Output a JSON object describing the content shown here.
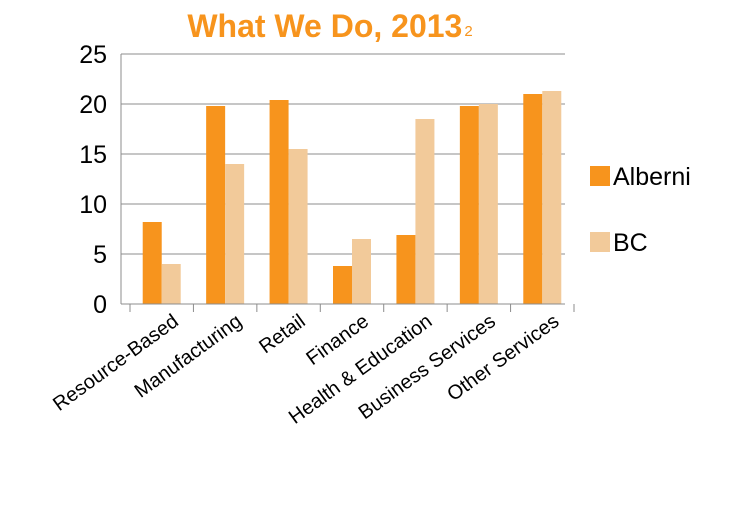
{
  "chart_data": {
    "type": "bar",
    "title": "What We Do, 2013",
    "title_superscript": "2",
    "xlabel": "",
    "ylabel": "",
    "categories": [
      "Resource-Based",
      "Manufacturing",
      "Retail",
      "Finance",
      "Health & Education",
      "Business Services",
      "Other Services"
    ],
    "series": [
      {
        "name": "Alberni",
        "color": "#f7941d",
        "values": [
          8.2,
          19.8,
          20.4,
          3.8,
          6.9,
          19.8,
          21.0
        ]
      },
      {
        "name": "BC",
        "color": "#f2ca9a",
        "values": [
          4.0,
          14.0,
          15.5,
          6.5,
          18.5,
          20.0,
          21.3
        ]
      }
    ],
    "ylim": [
      0,
      25
    ],
    "yticks": [
      0,
      5,
      10,
      15,
      20,
      25
    ],
    "grid": true,
    "legend_position": "right",
    "title_color": "#f7941d"
  }
}
